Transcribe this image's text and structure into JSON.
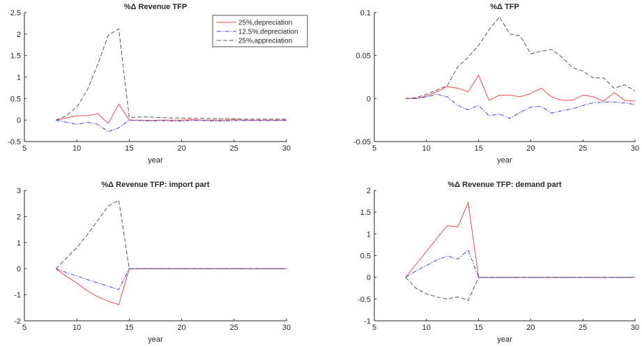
{
  "figure": {
    "legend": {
      "entries": [
        {
          "name": "25%,depreciation",
          "color": "#f04a4a",
          "dash": "solid"
        },
        {
          "name": "12.5%,depreciation",
          "color": "#3d3df0",
          "dash": "dashdot"
        },
        {
          "name": "25%,appreciation",
          "color": "#555555",
          "dash": "dashed"
        }
      ],
      "location": "top-right of first panel"
    }
  },
  "chart_data": [
    {
      "type": "line",
      "title": "%Δ Revenue TFP",
      "xlabel": "year",
      "ylabel": "",
      "xlim": [
        5,
        30
      ],
      "ylim": [
        -0.5,
        2.5
      ],
      "xticks": [
        "5",
        "10",
        "15",
        "20",
        "25",
        "30"
      ],
      "yticks": [
        "-0.5",
        "0",
        "0.5",
        "1",
        "1.5",
        "2",
        "2.5"
      ],
      "x": [
        8,
        9,
        10,
        11,
        12,
        13,
        14,
        15,
        16,
        17,
        18,
        19,
        20,
        21,
        22,
        23,
        24,
        25,
        26,
        27,
        28,
        29,
        30
      ],
      "series": [
        {
          "name": "25%,depreciation",
          "values": [
            0,
            0.05,
            0.1,
            0.1,
            0.15,
            -0.08,
            0.37,
            0,
            0,
            -0.01,
            0,
            0,
            0,
            0.01,
            0,
            0,
            0,
            0.01,
            0,
            0,
            0,
            0,
            0
          ]
        },
        {
          "name": "12.5%,depreciation",
          "values": [
            0,
            -0.05,
            -0.1,
            -0.05,
            -0.1,
            -0.27,
            -0.18,
            0,
            -0.01,
            -0.02,
            -0.01,
            -0.02,
            -0.02,
            -0.01,
            -0.01,
            -0.02,
            -0.02,
            -0.01,
            -0.01,
            -0.01,
            -0.01,
            -0.01,
            -0.01
          ]
        },
        {
          "name": "25%,appreciation",
          "values": [
            0,
            0.1,
            0.3,
            0.7,
            1.3,
            1.97,
            2.12,
            0.06,
            0.07,
            0.07,
            0.06,
            0.05,
            0.05,
            0.04,
            0.04,
            0.03,
            0.03,
            0.03,
            0.02,
            0.02,
            0.02,
            0.02,
            0.02
          ]
        }
      ]
    },
    {
      "type": "line",
      "title": "%Δ TFP",
      "xlabel": "year",
      "ylabel": "",
      "xlim": [
        5,
        30
      ],
      "ylim": [
        -0.05,
        0.1
      ],
      "xticks": [
        "5",
        "10",
        "15",
        "20",
        "25",
        "30"
      ],
      "yticks": [
        "-0.05",
        "0",
        "0.05",
        "0.1"
      ],
      "x": [
        8,
        9,
        10,
        11,
        12,
        13,
        14,
        15,
        16,
        17,
        18,
        19,
        20,
        21,
        22,
        23,
        24,
        25,
        26,
        27,
        28,
        29,
        30
      ],
      "series": [
        {
          "name": "25%,depreciation",
          "values": [
            0,
            0,
            0.003,
            0.008,
            0.014,
            0.012,
            0.008,
            0.027,
            -0.002,
            0.004,
            0.004,
            0.002,
            0.006,
            0.012,
            0.002,
            -0.002,
            -0.002,
            0.004,
            0.002,
            -0.003,
            0.007,
            -0.002,
            -0.003
          ]
        },
        {
          "name": "12.5%,depreciation",
          "values": [
            0,
            0,
            0.002,
            0.005,
            0.002,
            -0.008,
            -0.013,
            -0.008,
            -0.02,
            -0.018,
            -0.023,
            -0.016,
            -0.01,
            -0.009,
            -0.017,
            -0.014,
            -0.012,
            -0.008,
            -0.005,
            -0.004,
            -0.004,
            -0.005,
            -0.007
          ]
        },
        {
          "name": "25%,appreciation",
          "values": [
            0,
            0.001,
            0.005,
            0.01,
            0.015,
            0.037,
            0.048,
            0.062,
            0.08,
            0.095,
            0.075,
            0.073,
            0.052,
            0.055,
            0.057,
            0.048,
            0.036,
            0.032,
            0.024,
            0.024,
            0.012,
            0.016,
            0.009
          ]
        }
      ]
    },
    {
      "type": "line",
      "title": "%Δ Revenue TFP: import part",
      "xlabel": "year",
      "ylabel": "",
      "xlim": [
        5,
        30
      ],
      "ylim": [
        -2,
        3
      ],
      "xticks": [
        "5",
        "10",
        "15",
        "20",
        "25",
        "30"
      ],
      "yticks": [
        "-2",
        "-1",
        "0",
        "1",
        "2",
        "3"
      ],
      "x": [
        8,
        9,
        10,
        11,
        12,
        13,
        14,
        15,
        16,
        17,
        18,
        19,
        20,
        21,
        22,
        23,
        24,
        25,
        26,
        27,
        28,
        29,
        30
      ],
      "series": [
        {
          "name": "25%,depreciation",
          "values": [
            0,
            -0.3,
            -0.55,
            -0.85,
            -1.08,
            -1.25,
            -1.38,
            0,
            0,
            0,
            0,
            0,
            0,
            0,
            0,
            0,
            0,
            0,
            0,
            0,
            0,
            0,
            0
          ]
        },
        {
          "name": "12.5%,depreciation",
          "values": [
            0,
            -0.15,
            -0.28,
            -0.42,
            -0.55,
            -0.68,
            -0.8,
            0,
            0,
            0,
            0,
            0,
            0,
            0,
            0,
            0,
            0,
            0,
            0,
            0,
            0,
            0,
            0
          ]
        },
        {
          "name": "25%,appreciation",
          "values": [
            0,
            0.4,
            0.8,
            1.3,
            1.85,
            2.4,
            2.62,
            0,
            0,
            0,
            0,
            0,
            0,
            0,
            0,
            0,
            0,
            0,
            0,
            0,
            0,
            0,
            0
          ]
        }
      ]
    },
    {
      "type": "line",
      "title": "%Δ Revenue TFP: demand part",
      "xlabel": "year",
      "ylabel": "",
      "xlim": [
        5,
        30
      ],
      "ylim": [
        -1,
        2
      ],
      "xticks": [
        "5",
        "10",
        "15",
        "20",
        "25",
        "30"
      ],
      "yticks": [
        "-1",
        "-0.5",
        "0",
        "0.5",
        "1",
        "1.5",
        "2"
      ],
      "x": [
        8,
        9,
        10,
        11,
        12,
        13,
        14,
        15,
        16,
        17,
        18,
        19,
        20,
        21,
        22,
        23,
        24,
        25,
        26,
        27,
        28,
        29,
        30
      ],
      "series": [
        {
          "name": "25%,depreciation",
          "values": [
            0,
            0.3,
            0.6,
            0.9,
            1.19,
            1.16,
            1.72,
            0,
            0,
            0,
            0,
            0,
            0,
            0,
            0,
            0,
            0,
            0,
            0,
            0,
            0,
            0,
            0
          ]
        },
        {
          "name": "12.5%,depreciation",
          "values": [
            0,
            0.15,
            0.27,
            0.4,
            0.49,
            0.42,
            0.63,
            0,
            0,
            0,
            0,
            0,
            0,
            0,
            0,
            0,
            0,
            0,
            0,
            0,
            0,
            0,
            0
          ]
        },
        {
          "name": "25%,appreciation",
          "values": [
            0,
            -0.25,
            -0.38,
            -0.45,
            -0.5,
            -0.45,
            -0.53,
            0,
            0,
            0,
            0,
            0,
            0,
            0,
            0,
            0,
            0,
            0,
            0,
            0,
            0,
            0,
            0
          ]
        }
      ]
    }
  ]
}
